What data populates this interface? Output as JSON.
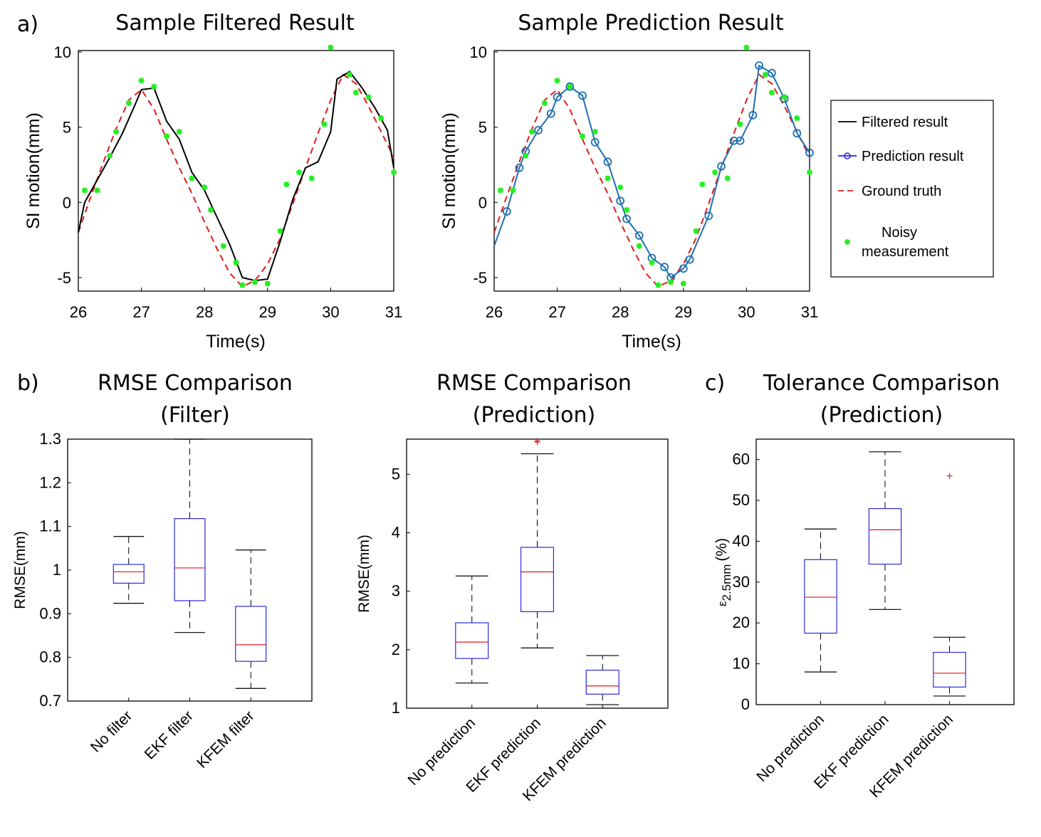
{
  "panel_labels": {
    "a": "a)",
    "b": "b)",
    "c": "c)"
  },
  "colors": {
    "filtered": "#000000",
    "prediction": "#1f6fb0",
    "prediction_marker": "#1f6fb0",
    "ground_truth": "#e01b1b",
    "noisy": "#22ee22",
    "box": "#2a2ae0",
    "median": "#e01b1b",
    "whisker": "#000000",
    "outlier": "#e01b1b"
  },
  "chart_data": [
    {
      "type": "line",
      "title": "Sample Filtered Result",
      "xlabel": "Time(s)",
      "ylabel": "SI motion(mm)",
      "xlim": [
        26,
        31
      ],
      "ylim": [
        -5.9,
        10.1
      ],
      "xticks": [
        "26",
        "27",
        "28",
        "29",
        "30",
        "31"
      ],
      "yticks": [
        "-5",
        "0",
        "5",
        "10"
      ],
      "series": [
        {
          "name": "Ground truth",
          "style": "dashed",
          "x": [
            26.0,
            26.2,
            26.4,
            26.6,
            26.8,
            27.0,
            27.2,
            27.4,
            27.6,
            27.8,
            28.0,
            28.2,
            28.4,
            28.6,
            28.8,
            29.0,
            29.2,
            29.4,
            29.6,
            29.8,
            30.0,
            30.2,
            30.4,
            30.6,
            30.8,
            31.0
          ],
          "y": [
            -2.0,
            0.4,
            2.7,
            4.9,
            6.8,
            7.5,
            6.2,
            4.2,
            2.3,
            0.6,
            -1.3,
            -3.1,
            -4.7,
            -5.6,
            -5.2,
            -4.1,
            -2.4,
            -0.1,
            2.3,
            4.6,
            6.8,
            8.5,
            7.9,
            6.4,
            4.7,
            3.0
          ]
        },
        {
          "name": "Filtered result",
          "style": "solid",
          "x": [
            26.0,
            26.1,
            26.3,
            26.5,
            26.7,
            26.9,
            27.0,
            27.2,
            27.4,
            27.6,
            27.8,
            28.0,
            28.2,
            28.4,
            28.6,
            28.8,
            29.0,
            29.2,
            29.4,
            29.6,
            29.8,
            30.0,
            30.1,
            30.3,
            30.5,
            30.7,
            30.9,
            31.0
          ],
          "y": [
            -2.0,
            0.0,
            1.5,
            3.0,
            4.6,
            6.5,
            7.5,
            7.6,
            5.4,
            4.2,
            2.0,
            0.8,
            -1.0,
            -2.8,
            -5.0,
            -5.2,
            -5.1,
            -2.6,
            0.2,
            2.3,
            2.7,
            4.7,
            8.2,
            8.7,
            7.6,
            6.3,
            4.8,
            2.3
          ]
        },
        {
          "name": "Noisy measurement",
          "style": "marker",
          "x": [
            26.1,
            26.3,
            26.5,
            26.6,
            26.8,
            27.0,
            27.2,
            27.4,
            27.6,
            27.8,
            28.0,
            28.1,
            28.3,
            28.5,
            28.6,
            28.8,
            29.0,
            29.2,
            29.3,
            29.5,
            29.7,
            29.9,
            30.0,
            30.3,
            30.4,
            30.6,
            30.8,
            31.0
          ],
          "y": [
            0.8,
            0.8,
            3.1,
            4.7,
            6.6,
            8.1,
            7.7,
            4.4,
            4.7,
            1.6,
            1.0,
            -0.5,
            -2.9,
            -4.0,
            -5.5,
            -5.3,
            -5.4,
            -1.9,
            1.2,
            2.0,
            1.6,
            5.2,
            10.3,
            8.5,
            7.3,
            7.0,
            5.6,
            2.0
          ]
        }
      ]
    },
    {
      "type": "line",
      "title": "Sample Prediction Result",
      "xlabel": "Time(s)",
      "ylabel": "SI motion(mm)",
      "xlim": [
        26,
        31
      ],
      "ylim": [
        -5.9,
        10.1
      ],
      "xticks": [
        "26",
        "27",
        "28",
        "29",
        "30",
        "31"
      ],
      "yticks": [
        "-5",
        "0",
        "5",
        "10"
      ],
      "series": [
        {
          "name": "Ground truth",
          "style": "dashed",
          "x": [
            26.0,
            26.2,
            26.4,
            26.6,
            26.8,
            27.0,
            27.2,
            27.4,
            27.6,
            27.8,
            28.0,
            28.2,
            28.4,
            28.6,
            28.8,
            29.0,
            29.2,
            29.4,
            29.6,
            29.8,
            30.0,
            30.2,
            30.4,
            30.6,
            30.8,
            31.0
          ],
          "y": [
            -2.0,
            0.4,
            2.7,
            4.9,
            6.8,
            7.5,
            6.2,
            4.2,
            2.3,
            0.6,
            -1.3,
            -3.1,
            -4.7,
            -5.6,
            -5.2,
            -4.1,
            -2.4,
            -0.1,
            2.3,
            4.6,
            6.8,
            8.5,
            7.9,
            6.4,
            4.7,
            3.0
          ]
        },
        {
          "name": "Prediction result",
          "style": "line-circle",
          "x": [
            26.0,
            26.2,
            26.4,
            26.5,
            26.7,
            26.9,
            27.0,
            27.2,
            27.4,
            27.6,
            27.8,
            28.0,
            28.1,
            28.3,
            28.5,
            28.7,
            28.8,
            29.0,
            29.1,
            29.4,
            29.6,
            29.8,
            29.9,
            30.1,
            30.2,
            30.4,
            30.6,
            30.8,
            31.0
          ],
          "y": [
            -2.9,
            -0.6,
            2.3,
            3.4,
            4.8,
            5.9,
            7.0,
            7.7,
            7.1,
            4.0,
            2.7,
            0.1,
            -1.1,
            -2.2,
            -3.7,
            -4.3,
            -5.0,
            -4.4,
            -3.8,
            -0.9,
            2.4,
            4.1,
            4.1,
            5.8,
            9.1,
            8.6,
            6.9,
            4.6,
            3.3
          ]
        },
        {
          "name": "Noisy measurement",
          "style": "marker",
          "x": [
            26.1,
            26.3,
            26.5,
            26.6,
            26.8,
            27.0,
            27.2,
            27.4,
            27.6,
            27.8,
            28.0,
            28.1,
            28.3,
            28.5,
            28.6,
            28.8,
            29.0,
            29.2,
            29.3,
            29.5,
            29.7,
            29.9,
            30.0,
            30.3,
            30.4,
            30.6,
            30.8,
            31.0
          ],
          "y": [
            0.8,
            0.8,
            3.1,
            4.7,
            6.6,
            8.1,
            7.7,
            4.4,
            4.7,
            1.6,
            1.0,
            -0.5,
            -2.9,
            -4.0,
            -5.5,
            -5.3,
            -5.4,
            -1.9,
            1.2,
            2.0,
            1.6,
            5.2,
            10.3,
            8.5,
            7.3,
            7.0,
            5.6,
            2.0
          ]
        }
      ],
      "legend": {
        "placement": "right",
        "entries": [
          "Filtered result",
          "Prediction result",
          "Ground truth",
          "Noisy",
          "measurement"
        ]
      }
    },
    {
      "type": "box",
      "title": "RMSE Comparison",
      "subtitle": "(Filter)",
      "ylabel": "RMSE(mm)",
      "ylim": [
        0.7,
        1.3
      ],
      "yticks": [
        "0.7",
        "0.8",
        "0.9",
        "1",
        "1.1",
        "1.2",
        "1.3"
      ],
      "categories": [
        "No filter",
        "EKF filter",
        "KFEM filter"
      ],
      "boxes": [
        {
          "lo": 0.924,
          "q1": 0.97,
          "med": 0.996,
          "q3": 1.013,
          "hi": 1.077,
          "outliers": []
        },
        {
          "lo": 0.857,
          "q1": 0.93,
          "med": 1.005,
          "q3": 1.118,
          "hi": 1.3,
          "outliers": []
        },
        {
          "lo": 0.729,
          "q1": 0.791,
          "med": 0.829,
          "q3": 0.917,
          "hi": 1.046,
          "outliers": []
        }
      ]
    },
    {
      "type": "box",
      "title": "RMSE Comparison",
      "subtitle": "(Prediction)",
      "ylabel": "RMSE(mm)",
      "ylim": [
        1,
        5.6
      ],
      "yticks": [
        "1",
        "2",
        "3",
        "4",
        "5"
      ],
      "categories": [
        "No prediction",
        "EKF prediction",
        "KFEM prediction"
      ],
      "boxes": [
        {
          "lo": 1.43,
          "q1": 1.85,
          "med": 2.13,
          "q3": 2.46,
          "hi": 3.26,
          "outliers": []
        },
        {
          "lo": 2.03,
          "q1": 2.65,
          "med": 3.33,
          "q3": 3.75,
          "hi": 5.35,
          "outliers": [
            5.55,
            5.57
          ]
        },
        {
          "lo": 1.06,
          "q1": 1.24,
          "med": 1.38,
          "q3": 1.65,
          "hi": 1.9,
          "outliers": []
        }
      ]
    },
    {
      "type": "box",
      "title": "Tolerance Comparison",
      "subtitle": "(Prediction)",
      "ylabel": "ε",
      "ylabel_sub": "2.5mm",
      "ylabel_unit": "(%)",
      "ylim": [
        0,
        65
      ],
      "yticks": [
        "0",
        "10",
        "20",
        "30",
        "40",
        "50",
        "60"
      ],
      "categories": [
        "No prediction",
        "EKF prediction",
        "KFEM prediction"
      ],
      "boxes": [
        {
          "lo": 8.0,
          "q1": 17.5,
          "med": 26.3,
          "q3": 35.5,
          "hi": 43.0,
          "outliers": []
        },
        {
          "lo": 23.3,
          "q1": 34.4,
          "med": 42.8,
          "q3": 48.0,
          "hi": 61.9,
          "outliers": []
        },
        {
          "lo": 2.1,
          "q1": 4.3,
          "med": 7.7,
          "q3": 12.8,
          "hi": 16.5,
          "outliers": [
            56.0
          ]
        }
      ]
    }
  ]
}
